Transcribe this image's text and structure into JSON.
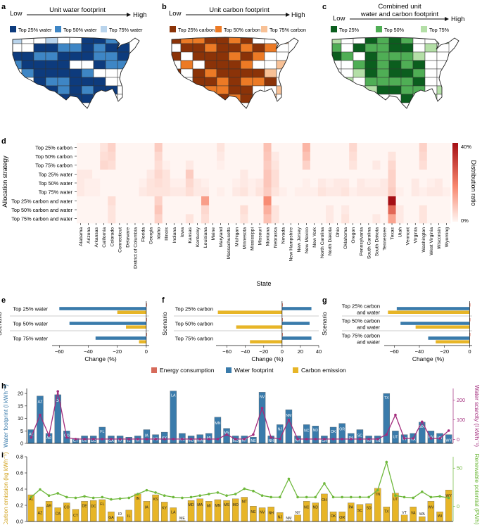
{
  "colors": {
    "water": [
      "#0d3b7d",
      "#3e86c5",
      "#b9d4ec"
    ],
    "carbon": [
      "#8b3308",
      "#ec7a25",
      "#f8c196"
    ],
    "combined": [
      "#0b5e1e",
      "#4fae55",
      "#b4dfa7"
    ],
    "heat_low": "#fff5f2",
    "heat_high": "#a50f15",
    "energy": "#d66a5a",
    "water_bar": "#3a7bab",
    "carbon_bar": "#e7b527",
    "scarcity": "#a22b7c",
    "renew": "#6eb83b"
  },
  "panel_a": {
    "letter": "a",
    "low": "Low",
    "high": "High",
    "title": "Unit water footprint",
    "legend": [
      "Top 25% water",
      "Top 50% water",
      "Top 75% water"
    ]
  },
  "panel_b": {
    "letter": "b",
    "low": "Low",
    "high": "High",
    "title": "Unit carbon footprint",
    "legend": [
      "Top 25% carbon",
      "Top 50% carbon",
      "Top 75% carbon"
    ]
  },
  "panel_c": {
    "letter": "c",
    "low": "Low",
    "high": "High",
    "title_1": "Combined unit",
    "title_2": "water and carbon footprint",
    "legend": [
      "Top 25%",
      "Top 50%",
      "Top 75%"
    ]
  },
  "chart_data": [
    {
      "panel": "d",
      "type": "heatmap",
      "ylabel": "Allocation strategy",
      "xlabel": "State",
      "colorbar_label": "Distribution ratio",
      "colorbar_ticks": [
        "40%",
        "0%"
      ],
      "rows": [
        "Top 25% carbon",
        "Top 50% carbon",
        "Top 75% carbon",
        "Top 25% water",
        "Top 50% water",
        "Top 75% water",
        "Top 25% carbon and water",
        "Top 50% carbon and water",
        "Top 75% carbon and water"
      ],
      "columns": [
        "Alabama",
        "Arizona",
        "Arkansas",
        "California",
        "Colorado",
        "Connecticut",
        "Delaware",
        "District of Columbia",
        "Florida",
        "Georgia",
        "Idaho",
        "Illinois",
        "Indiana",
        "Iowa",
        "Kansas",
        "Kentucky",
        "Louisiana",
        "Maine",
        "Maryland",
        "Massachusetts",
        "Michigan",
        "Minnesota",
        "Mississippi",
        "Missouri",
        "Montana",
        "Nebraska",
        "Nevada",
        "New Hampshire",
        "New Jersey",
        "New Mexico",
        "New York",
        "North Carolina",
        "North Dakota",
        "Ohio",
        "Oklahoma",
        "Oregon",
        "Pennsylvania",
        "South Carolina",
        "South Dakota",
        "Tennessee",
        "Texas",
        "Utah",
        "Vermont",
        "Virginia",
        "Washington",
        "West Virginia",
        "Wisconsin",
        "Wyoming"
      ],
      "values": [
        [
          0,
          0,
          0,
          0.03,
          0.06,
          0,
          0,
          0,
          0,
          0,
          0.07,
          0,
          0,
          0,
          0,
          0,
          0,
          0,
          0.03,
          0,
          0,
          0,
          0,
          0,
          0.09,
          0,
          0,
          0,
          0,
          0.11,
          0,
          0,
          0,
          0,
          0,
          0.05,
          0,
          0,
          0,
          0,
          0,
          0,
          0,
          0,
          0.06,
          0,
          0,
          0
        ],
        [
          0,
          0,
          0,
          0.04,
          0.05,
          0,
          0,
          0,
          0,
          0,
          0.05,
          0,
          0,
          0,
          0,
          0,
          0,
          0,
          0.02,
          0,
          0,
          0,
          0,
          0,
          0.08,
          0.02,
          0,
          0,
          0,
          0.09,
          0,
          0,
          0,
          0,
          0,
          0.04,
          0,
          0,
          0,
          0,
          0.03,
          0,
          0,
          0,
          0.05,
          0,
          0,
          0
        ],
        [
          0,
          0,
          0,
          0.05,
          0.04,
          0,
          0,
          0,
          0,
          0,
          0.04,
          0.01,
          0,
          0,
          0.02,
          0,
          0,
          0,
          0.01,
          0,
          0,
          0,
          0,
          0,
          0.07,
          0.03,
          0,
          0,
          0,
          0.06,
          0,
          0,
          0,
          0,
          0,
          0.03,
          0,
          0,
          0.02,
          0,
          0.05,
          0,
          0,
          0,
          0.04,
          0,
          0,
          0
        ],
        [
          0.02,
          0.02,
          0,
          0,
          0,
          0,
          0,
          0,
          0,
          0.02,
          0.05,
          0.03,
          0,
          0,
          0.07,
          0,
          0,
          0,
          0,
          0,
          0,
          0.02,
          0,
          0,
          0.08,
          0.04,
          0,
          0,
          0,
          0,
          0,
          0,
          0,
          0,
          0,
          0,
          0,
          0,
          0,
          0,
          0.06,
          0,
          0,
          0,
          0,
          0,
          0,
          0
        ],
        [
          0.02,
          0.01,
          0.01,
          0,
          0,
          0,
          0,
          0,
          0.01,
          0.03,
          0.04,
          0.03,
          0.01,
          0.01,
          0.05,
          0.02,
          0.01,
          0,
          0,
          0,
          0.01,
          0.02,
          0.01,
          0.02,
          0.08,
          0.04,
          0,
          0,
          0,
          0.01,
          0,
          0.02,
          0.01,
          0.02,
          0.02,
          0,
          0.02,
          0.01,
          0.01,
          0.02,
          0.06,
          0,
          0,
          0.02,
          0,
          0.01,
          0.02,
          0
        ],
        [
          0.02,
          0.01,
          0.01,
          0,
          0,
          0,
          0,
          0,
          0.02,
          0.03,
          0.03,
          0.03,
          0.02,
          0.02,
          0.04,
          0.02,
          0.02,
          0,
          0.01,
          0,
          0.02,
          0.03,
          0.01,
          0.03,
          0.07,
          0.03,
          0.01,
          0,
          0.01,
          0.01,
          0.01,
          0.03,
          0.02,
          0.02,
          0.03,
          0.01,
          0.02,
          0.02,
          0.02,
          0.02,
          0.07,
          0.01,
          0,
          0.02,
          0.01,
          0.02,
          0.02,
          0.01
        ],
        [
          0,
          0,
          0,
          0,
          0.04,
          0,
          0,
          0,
          0,
          0,
          0.06,
          0,
          0,
          0,
          0,
          0,
          0.15,
          0,
          0,
          0,
          0,
          0,
          0,
          0,
          0.18,
          0,
          0,
          0,
          0,
          0,
          0,
          0,
          0,
          0,
          0,
          0,
          0,
          0,
          0,
          0,
          0.42,
          0,
          0,
          0,
          0,
          0,
          0,
          0
        ],
        [
          0,
          0,
          0,
          0,
          0.03,
          0,
          0,
          0,
          0,
          0,
          0.08,
          0,
          0,
          0,
          0,
          0,
          0.05,
          0,
          0,
          0,
          0,
          0.04,
          0,
          0,
          0.12,
          0.03,
          0,
          0,
          0,
          0,
          0,
          0,
          0.02,
          0,
          0.02,
          0,
          0,
          0,
          0,
          0,
          0.25,
          0.02,
          0,
          0,
          0.03,
          0,
          0,
          0
        ],
        [
          0,
          0,
          0,
          0,
          0.03,
          0,
          0,
          0,
          0,
          0,
          0.06,
          0,
          0,
          0,
          0.03,
          0,
          0.04,
          0,
          0,
          0,
          0,
          0.03,
          0,
          0,
          0.09,
          0.03,
          0,
          0,
          0,
          0,
          0,
          0,
          0.02,
          0,
          0.03,
          0,
          0,
          0,
          0.02,
          0,
          0.14,
          0.02,
          0,
          0,
          0.03,
          0,
          0,
          0
        ]
      ],
      "vmin": 0,
      "vmax": 0.42
    },
    {
      "panel": "e",
      "type": "bar",
      "orientation": "horizontal",
      "ylabel": "Scenario",
      "xlabel": "Change (%)",
      "categories": [
        "Top 25% water",
        "Top 50% water",
        "Top 75% water"
      ],
      "xlim": [
        -65,
        2
      ],
      "xticks": [
        -60,
        -40,
        -20,
        0
      ],
      "series": [
        {
          "name": "Energy consumption",
          "values": [
            0.3,
            0.3,
            0.3
          ]
        },
        {
          "name": "Water footprint",
          "values": [
            -60,
            -53,
            -35
          ]
        },
        {
          "name": "Carbon emission",
          "values": [
            -20,
            -14,
            -5
          ]
        }
      ]
    },
    {
      "panel": "f",
      "type": "bar",
      "orientation": "horizontal",
      "ylabel": "Scenario",
      "xlabel": "Change (%)",
      "categories": [
        "Top 25% carbon",
        "Top 50% carbon",
        "Top 75% carbon"
      ],
      "xlim": [
        -72,
        40
      ],
      "xticks": [
        -60,
        -40,
        -20,
        0,
        20,
        40
      ],
      "series": [
        {
          "name": "Energy consumption",
          "values": [
            0.3,
            0.3,
            0.3
          ]
        },
        {
          "name": "Water footprint",
          "values": [
            32,
            30,
            32
          ]
        },
        {
          "name": "Carbon emission",
          "values": [
            -70,
            -50,
            -35
          ]
        }
      ]
    },
    {
      "panel": "g",
      "type": "bar",
      "orientation": "horizontal",
      "ylabel": "Scenario",
      "xlabel": "Change (%)",
      "categories": [
        "Top 25% carbon and water",
        "Top 50% carbon and water",
        "Top 75% carbon and water"
      ],
      "xlim": [
        -68,
        2
      ],
      "xticks": [
        -60,
        -40,
        -20,
        0
      ],
      "series": [
        {
          "name": "Energy consumption",
          "values": [
            0.3,
            0.3,
            0.3
          ]
        },
        {
          "name": "Water footprint",
          "values": [
            -58,
            -55,
            -33
          ]
        },
        {
          "name": "Carbon emission",
          "values": [
            -65,
            -43,
            -27
          ]
        }
      ]
    },
    {
      "panel": "h",
      "type": "bar",
      "ylabel": "Water footprint (l kWh⁻¹)",
      "y2label": "Water scarcity (l kWh⁻¹)",
      "ylim": [
        0,
        22
      ],
      "yticks": [
        0,
        5,
        10,
        15,
        20
      ],
      "y2lim": [
        -20,
        260
      ],
      "y2ticks": [
        0,
        100,
        200
      ],
      "categories": [
        "AL",
        "AZ",
        "AR",
        "CA",
        "CO",
        "CT",
        "DE",
        "DC",
        "FL",
        "GA",
        "ID",
        "IL",
        "IN",
        "IA",
        "KS",
        "KY",
        "LA",
        "ME",
        "MD",
        "MA",
        "MI",
        "MN",
        "MS",
        "MO",
        "MT",
        "NE",
        "NV",
        "NH",
        "NJ",
        "NM",
        "NY",
        "NC",
        "ND",
        "OH",
        "OK",
        "OR",
        "PA",
        "SC",
        "SD",
        "TN",
        "TX",
        "UT",
        "VT",
        "VA",
        "WA",
        "WV",
        "WI",
        "WY"
      ],
      "series": [
        {
          "name": "Water footprint",
          "values": [
            5.5,
            19,
            4,
            19.5,
            5,
            2,
            3,
            3,
            6.5,
            3,
            3,
            2.5,
            3,
            5.5,
            3.5,
            4.5,
            21,
            4,
            3,
            3.5,
            4,
            10.5,
            6,
            3,
            3,
            2.5,
            20.5,
            3,
            7.5,
            13.5,
            3,
            7.5,
            7,
            3,
            6.5,
            8,
            4,
            5.5,
            3,
            3,
            20,
            5,
            3.5,
            4,
            8.5,
            5,
            4,
            3.5
          ]
        },
        {
          "name": "Water scarcity",
          "values": [
            10,
            125,
            20,
            245,
            10,
            2,
            2,
            2,
            2,
            2,
            2,
            2,
            2,
            2,
            2,
            2,
            2,
            2,
            2,
            2,
            2,
            2,
            25,
            2,
            2,
            25,
            160,
            10,
            2,
            100,
            2,
            2,
            2,
            2,
            2,
            2,
            2,
            2,
            2,
            2,
            25,
            125,
            5,
            5,
            90,
            5,
            5,
            45
          ]
        }
      ]
    },
    {
      "panel": "i",
      "type": "bar",
      "ylabel": "Carbon emission (kg kWh⁻¹)",
      "y2label": "Renewable potential (PWh)",
      "ylim": [
        0,
        0.8
      ],
      "yticks": [
        0.0,
        0.2,
        0.4,
        0.6,
        0.8
      ],
      "y2lim": [
        -20,
        65
      ],
      "y2ticks": [
        0,
        50
      ],
      "categories": [
        "AL",
        "AZ",
        "AR",
        "CA",
        "CO",
        "CT",
        "DE",
        "DC",
        "FL",
        "GA",
        "ID",
        "IL",
        "IN",
        "IA",
        "KS",
        "KY",
        "LA",
        "ME",
        "MD",
        "MA",
        "MI",
        "MN",
        "MS",
        "MO",
        "MT",
        "NE",
        "NV",
        "NH",
        "NJ",
        "NM",
        "NY",
        "NC",
        "ND",
        "OH",
        "OK",
        "OR",
        "PA",
        "SC",
        "SD",
        "TN",
        "TX",
        "UT",
        "VT",
        "VA",
        "WA",
        "WV",
        "WI",
        "WY"
      ],
      "series": [
        {
          "name": "Carbon emission",
          "values": [
            0.33,
            0.18,
            0.25,
            0.17,
            0.23,
            0.15,
            0.25,
            0.26,
            0.27,
            0.12,
            0.06,
            0.14,
            0.34,
            0.25,
            0.33,
            0.24,
            0.17,
            0.01,
            0.26,
            0.28,
            0.25,
            0.27,
            0.26,
            0.28,
            0.3,
            0.19,
            0.17,
            0.18,
            0.11,
            0.01,
            0.08,
            0.25,
            0.23,
            0.34,
            0.12,
            0.12,
            0.23,
            0.21,
            0.22,
            0.41,
            0.18,
            0.35,
            0.08,
            0.18,
            0.06,
            0.25,
            0.12,
            0.39
          ]
        },
        {
          "name": "Renewable potential",
          "values": [
            12,
            22,
            14,
            17,
            12,
            11,
            13,
            11,
            12,
            9,
            10,
            11,
            16,
            21,
            18,
            14,
            12,
            11,
            12,
            14,
            16,
            18,
            14,
            16,
            23,
            20,
            14,
            12,
            12,
            36,
            12,
            12,
            12,
            30,
            12,
            12,
            12,
            12,
            12,
            21,
            58,
            14,
            12,
            11,
            19,
            12,
            13,
            11
          ]
        }
      ]
    }
  ],
  "panel_letters": {
    "d": "d",
    "e": "e",
    "f": "f",
    "g": "g",
    "h": "h",
    "i": "i"
  },
  "legend": {
    "energy": "Energy consumption",
    "water": "Water footprint",
    "carbon": "Carbon emission"
  }
}
